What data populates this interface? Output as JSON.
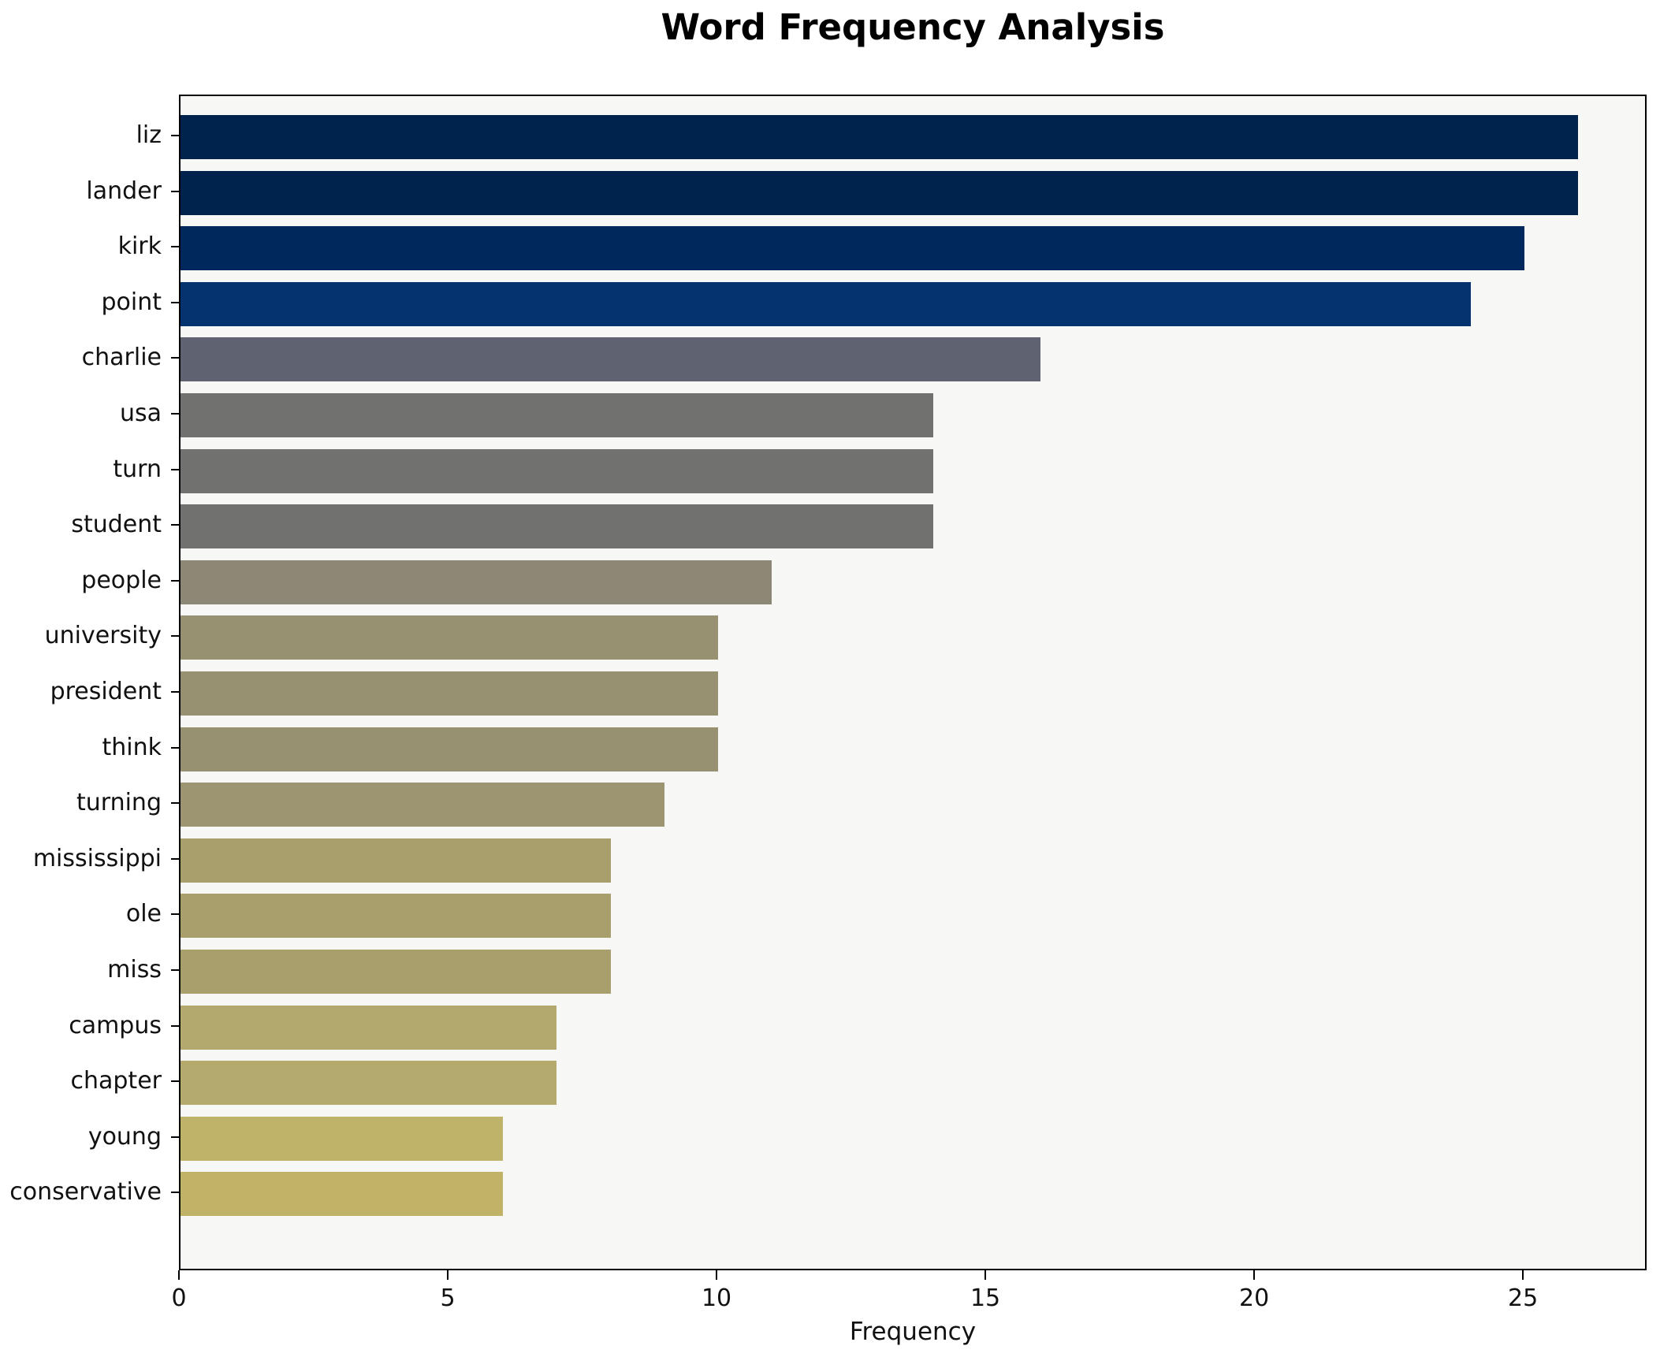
{
  "chart_data": {
    "type": "bar",
    "orientation": "horizontal",
    "title": "Word Frequency Analysis",
    "xlabel": "Frequency",
    "ylabel": "",
    "categories": [
      "liz",
      "lander",
      "kirk",
      "point",
      "charlie",
      "usa",
      "turn",
      "student",
      "people",
      "university",
      "president",
      "think",
      "turning",
      "mississippi",
      "ole",
      "miss",
      "campus",
      "chapter",
      "young",
      "conservative"
    ],
    "values": [
      26,
      26,
      25,
      24,
      16,
      14,
      14,
      14,
      11,
      10,
      10,
      10,
      9,
      8,
      8,
      8,
      7,
      7,
      6,
      6
    ],
    "bar_colors": [
      "#00234d",
      "#00234d",
      "#01285d",
      "#04336f",
      "#5f6270",
      "#717170",
      "#717170",
      "#717170",
      "#8d8775",
      "#979071",
      "#979071",
      "#979071",
      "#9d9471",
      "#a99f6d",
      "#a99f6d",
      "#a99f6d",
      "#b3a96e",
      "#b4aa6d",
      "#bfb269",
      "#c0b368"
    ],
    "xlim": [
      0,
      27.3
    ],
    "x_ticks": [
      0,
      5,
      10,
      15,
      20,
      25
    ],
    "grid": false,
    "legend": false,
    "plot_bg_color": "#f7f7f6",
    "figure_bg_color": "#ffffff",
    "spine_color": "#000000",
    "tick_label_color": "#111111"
  }
}
